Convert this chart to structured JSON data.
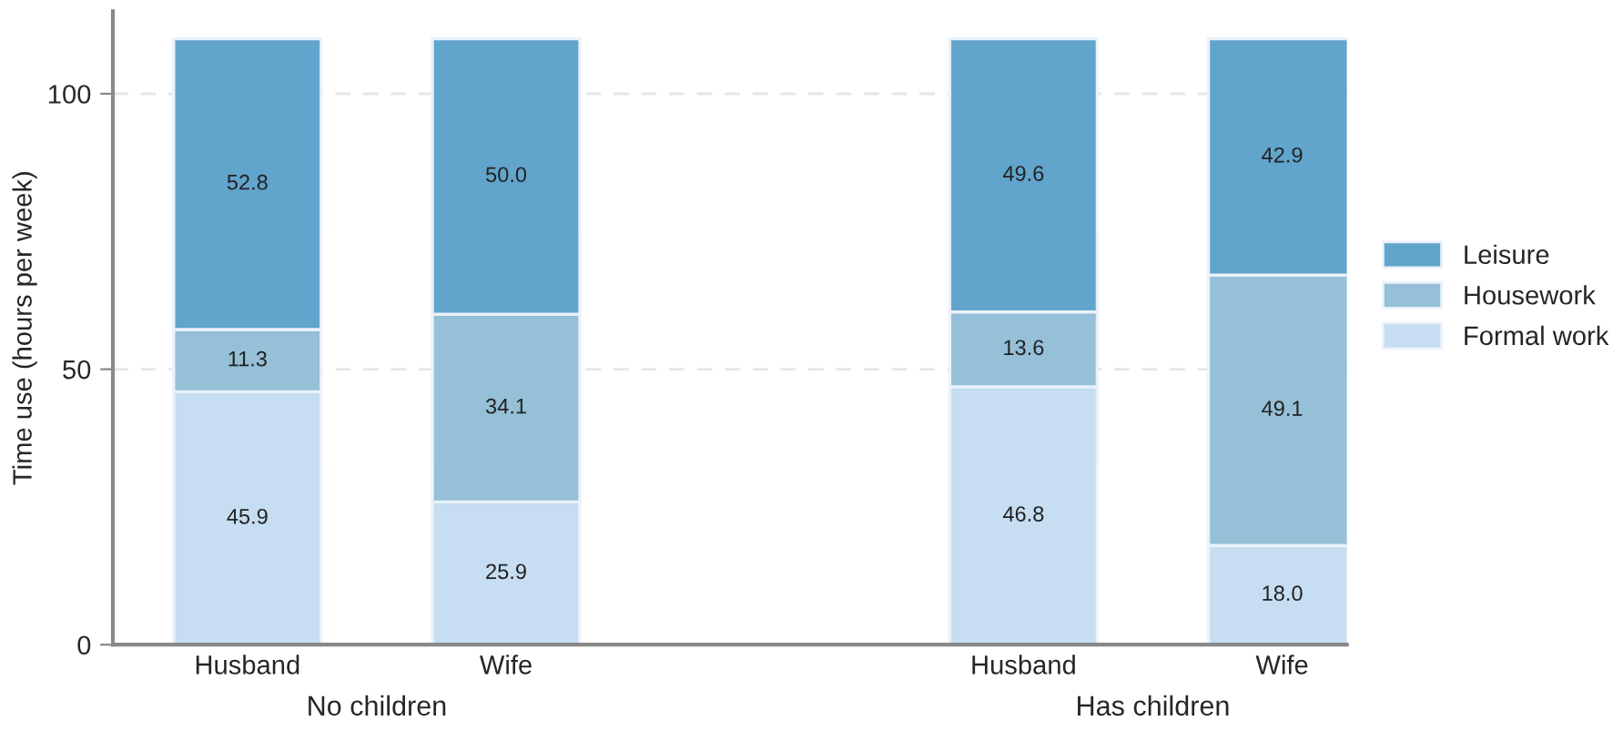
{
  "chart_data": {
    "type": "bar",
    "ylabel": "Time use (hours per week)",
    "categories": [
      "Husband",
      "Wife",
      null,
      "Husband",
      "Wife"
    ],
    "annotations": [
      "No children",
      "Has children"
    ],
    "stacked": true,
    "grid": "y",
    "legend": "right",
    "ylim": [
      0,
      115
    ],
    "yticks": [
      0,
      50,
      100
    ],
    "series": [
      {
        "name": "Formal work",
        "color": "#c6ddf2",
        "values": [
          45.9,
          25.9,
          null,
          46.8,
          18.0
        ],
        "value_labels": [
          "45.9",
          "25.9",
          null,
          "46.8",
          "18.0"
        ]
      },
      {
        "name": "Housework",
        "color": "#95c0d7",
        "values": [
          11.3,
          34.1,
          null,
          13.6,
          49.1
        ],
        "value_labels": [
          "11.3",
          "34.1",
          null,
          "13.6",
          "49.1"
        ]
      },
      {
        "name": "Leisure",
        "color": "#61a4cc",
        "values": [
          52.8,
          50.0,
          null,
          49.6,
          42.9
        ],
        "value_labels": [
          "52.8",
          "50.0",
          null,
          "49.6",
          "42.9"
        ]
      }
    ]
  }
}
